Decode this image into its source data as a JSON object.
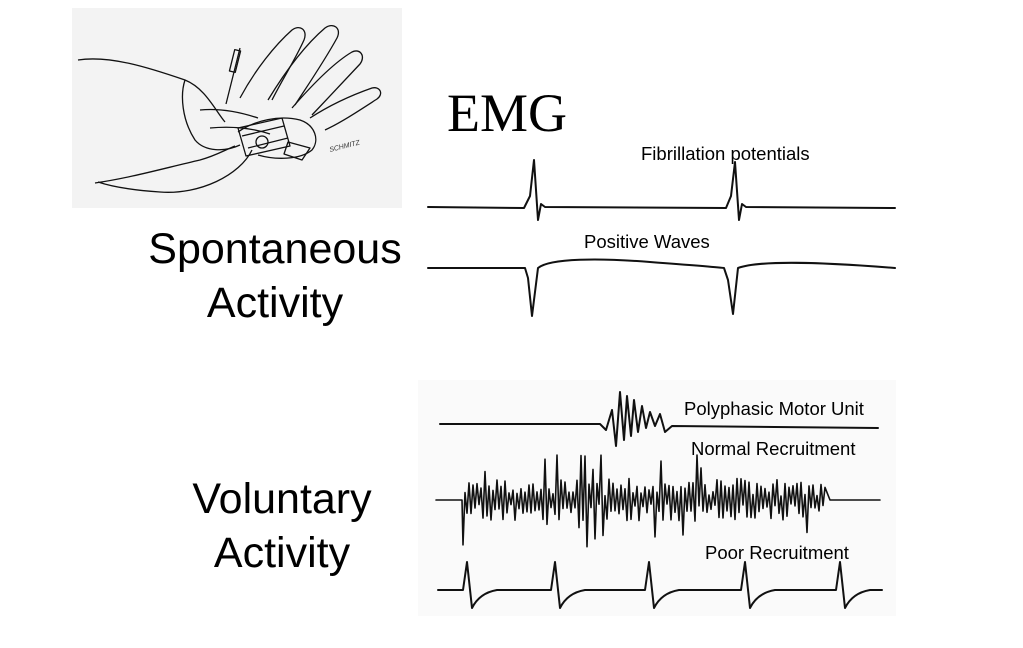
{
  "title": "EMG",
  "sections": {
    "spontaneous": {
      "line1": "Spontaneous",
      "line2": "Activity"
    },
    "voluntary": {
      "line1": "Voluntary",
      "line2": "Activity"
    }
  },
  "traces": {
    "fibrillation": "Fibrillation potentials",
    "positive_waves": "Positive Waves",
    "polyphasic": "Polyphasic Motor Unit",
    "normal_recruitment": "Normal Recruitment",
    "poor_recruitment": "Poor Recruitment"
  },
  "illustration": {
    "signature": "SCHMITZ"
  }
}
